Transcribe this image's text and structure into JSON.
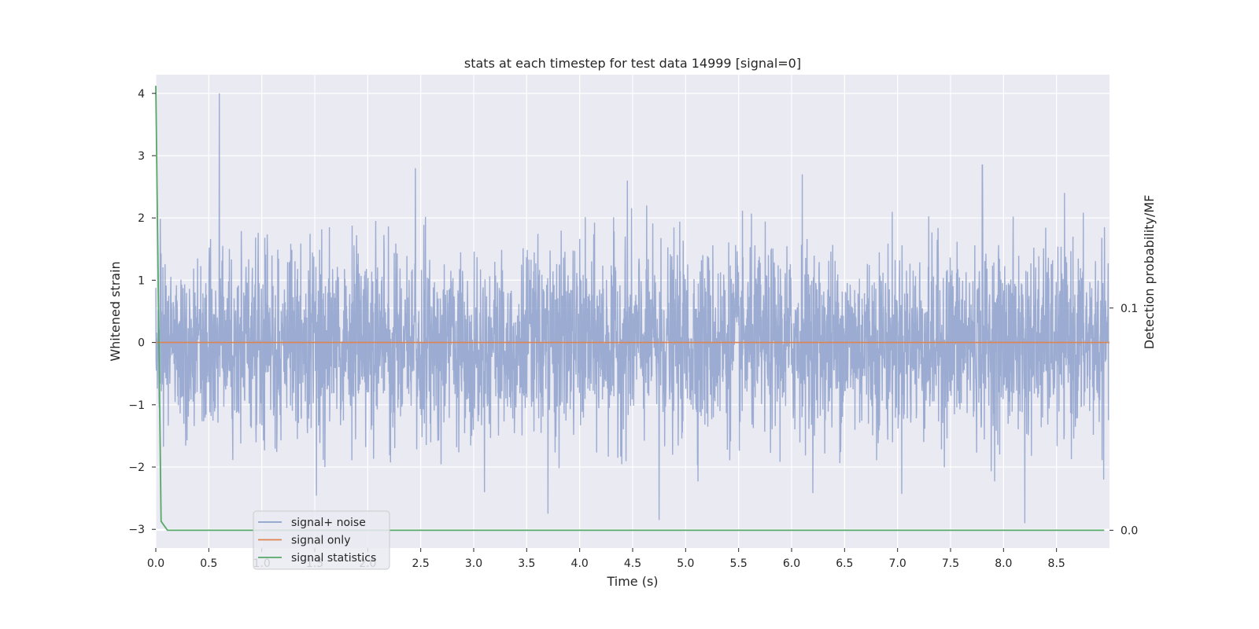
{
  "chart_data": {
    "type": "line",
    "title": "stats at each timestep for test data 14999 [signal=0]",
    "xlabel": "Time (s)",
    "ylabel": "Whitened strain",
    "ylabel_right": "Detection probability/MF",
    "xlim": [
      0.0,
      9.0
    ],
    "ylim": [
      -3.3,
      4.3
    ],
    "ylim_right": [
      -0.008,
      0.205
    ],
    "grid": true,
    "legend_position": "lower-left",
    "x_ticks": [
      0.0,
      0.5,
      1.0,
      1.5,
      2.0,
      2.5,
      3.0,
      3.5,
      4.0,
      4.5,
      5.0,
      5.5,
      6.0,
      6.5,
      7.0,
      7.5,
      8.0,
      8.5
    ],
    "x_tick_labels": [
      "0.0",
      "0.5",
      "1.0",
      "1.5",
      "2.0",
      "2.5",
      "3.0",
      "3.5",
      "4.0",
      "4.5",
      "5.0",
      "5.5",
      "6.0",
      "6.5",
      "7.0",
      "7.5",
      "8.0",
      "8.5"
    ],
    "y_ticks": [
      -3,
      -2,
      -1,
      0,
      1,
      2,
      3,
      4
    ],
    "y_tick_labels": [
      "−3",
      "−2",
      "−1",
      "0",
      "1",
      "2",
      "3",
      "4"
    ],
    "y_ticks_right": [
      0.0,
      0.1
    ],
    "y_tick_labels_right": [
      "0.0",
      "0.1"
    ],
    "series": [
      {
        "name": "signal+ noise",
        "axis": "left",
        "color": "#8da0cb",
        "description_values": "noise-like strain, roughly within [-2.9, 4.0], peak 4.0 near t=0.6 s",
        "peaks": [
          [
            0.6,
            4.0
          ],
          [
            2.45,
            2.8
          ],
          [
            7.8,
            2.85
          ],
          [
            4.45,
            2.6
          ],
          [
            6.1,
            2.7
          ],
          [
            8.2,
            -2.9
          ],
          [
            4.75,
            -2.85
          ],
          [
            3.7,
            -2.75
          ]
        ],
        "amplitude_std": 0.95
      },
      {
        "name": "signal only",
        "axis": "left",
        "color": "#dd8452",
        "x": [
          0.0,
          9.0
        ],
        "y": [
          0.0,
          0.0
        ]
      },
      {
        "name": "signal statistics",
        "axis": "right",
        "color": "#55a868",
        "x": [
          0.0,
          0.05,
          0.11,
          0.2,
          1.0,
          2.0,
          3.0,
          4.0,
          5.0,
          6.0,
          7.0,
          8.0,
          8.95
        ],
        "y": [
          0.2,
          0.004,
          0.0,
          0.0,
          0.0,
          0.0,
          0.0,
          0.0,
          0.0,
          0.0,
          0.0,
          0.0,
          0.0
        ]
      }
    ],
    "colors": {
      "plot_background": "#eaeaf2",
      "grid": "#ffffff"
    }
  }
}
